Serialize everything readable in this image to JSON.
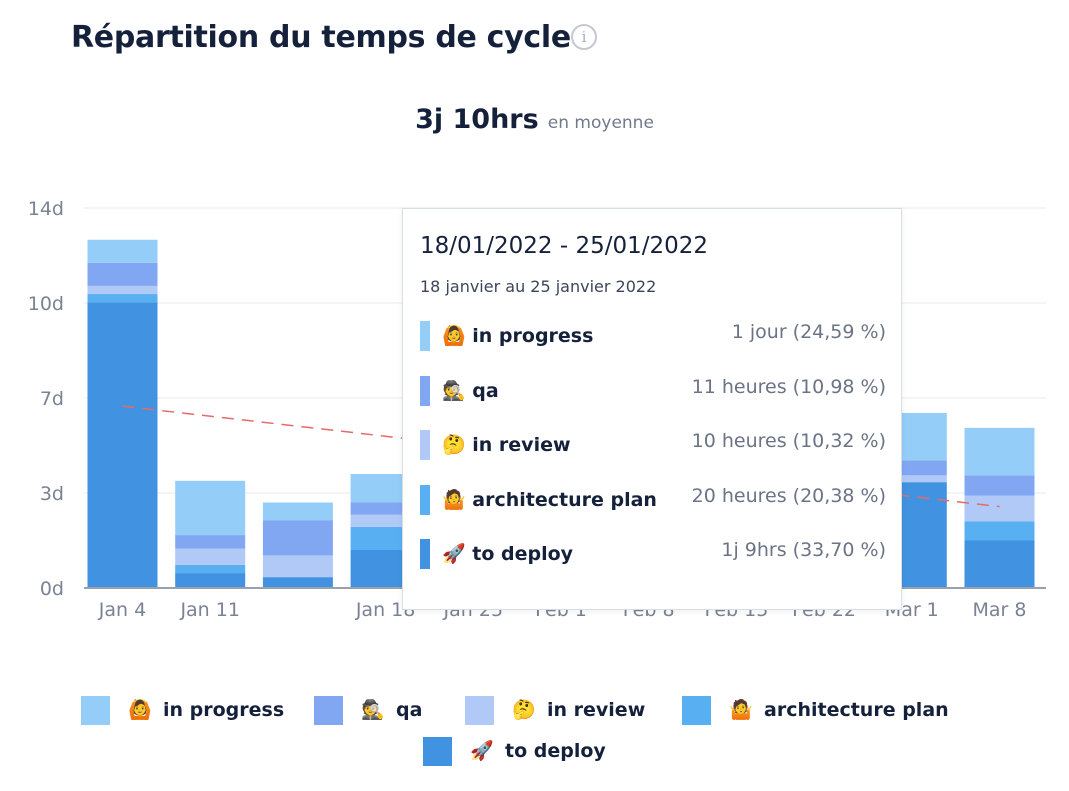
{
  "header": {
    "title": "Répartition du temps de cycle",
    "info_icon": "info-icon",
    "info_glyph": "i"
  },
  "summary": {
    "value": "3j 10hrs",
    "unit": "en moyenne"
  },
  "colors": {
    "in_progress": "#94cdf7",
    "qa": "#82a7f2",
    "in_review": "#b0c9f7",
    "architecture_plan": "#58aff2",
    "to_deploy": "#4192e0",
    "trend": "#e66a6a",
    "grid": "#e6e9ee",
    "axis": "#9aa1ae"
  },
  "chart_data": {
    "type": "bar",
    "stacked": true,
    "y_ticks": [
      "0d",
      "3d",
      "7d",
      "10d",
      "14d"
    ],
    "ylim": [
      0,
      14
    ],
    "x_tick_labels": [
      "Jan 4",
      "Jan 11",
      "",
      "Jan 18",
      "Jan 25",
      "Feb 1",
      "Feb 8",
      "Feb 15",
      "Feb 22",
      "Mar 1",
      "Mar 8"
    ],
    "grid": true,
    "legend_position": "bottom",
    "series": [
      {
        "key": "to_deploy",
        "name": "to deploy",
        "emoji": "🚀",
        "values": [
          10.53,
          0.55,
          0.4,
          1.4,
          null,
          null,
          null,
          null,
          null,
          3.9,
          1.75
        ]
      },
      {
        "key": "architecture_plan",
        "name": "architecture plan",
        "emoji": "🤷",
        "values": [
          0.3,
          0.3,
          0.0,
          0.85,
          null,
          null,
          null,
          null,
          null,
          0.0,
          0.7
        ]
      },
      {
        "key": "in_review",
        "name": "in review",
        "emoji": "🤔",
        "values": [
          0.3,
          0.6,
          0.8,
          0.45,
          null,
          null,
          null,
          null,
          null,
          0.25,
          0.95
        ]
      },
      {
        "key": "qa",
        "name": "qa",
        "emoji": "🕵",
        "values": [
          0.85,
          0.5,
          1.3,
          0.45,
          null,
          null,
          null,
          null,
          null,
          0.55,
          0.75
        ]
      },
      {
        "key": "in_progress",
        "name": "in progress",
        "emoji": "🙆",
        "values": [
          0.85,
          2.0,
          0.65,
          1.05,
          null,
          null,
          null,
          null,
          null,
          1.75,
          1.75
        ]
      }
    ],
    "trend_line": {
      "start": 6.7,
      "end": 3.0
    }
  },
  "tooltip": {
    "title": "18/01/2022 - 25/01/2022",
    "subtitle": "18 janvier au 25 janvier 2022",
    "rows": [
      {
        "key": "in_progress",
        "emoji": "🙆",
        "label": "in progress",
        "value": "1 jour (24,59 %)"
      },
      {
        "key": "qa",
        "emoji": "🕵",
        "label": "qa",
        "value": "11 heures (10,98 %)"
      },
      {
        "key": "in_review",
        "emoji": "🤔",
        "label": "in review",
        "value": "10 heures (10,32 %)"
      },
      {
        "key": "architecture_plan",
        "emoji": "🤷",
        "label": "architecture plan",
        "value": "20 heures (20,38 %)"
      },
      {
        "key": "to_deploy",
        "emoji": "🚀",
        "label": "to deploy",
        "value": "1j 9hrs (33,70 %)"
      }
    ]
  },
  "legend": [
    {
      "key": "in_progress",
      "emoji": "🙆",
      "label": "in progress"
    },
    {
      "key": "qa",
      "emoji": "🕵",
      "label": "qa"
    },
    {
      "key": "in_review",
      "emoji": "🤔",
      "label": "in review"
    },
    {
      "key": "architecture_plan",
      "emoji": "🤷",
      "label": "architecture plan"
    },
    {
      "key": "to_deploy",
      "emoji": "🚀",
      "label": "to deploy"
    }
  ]
}
